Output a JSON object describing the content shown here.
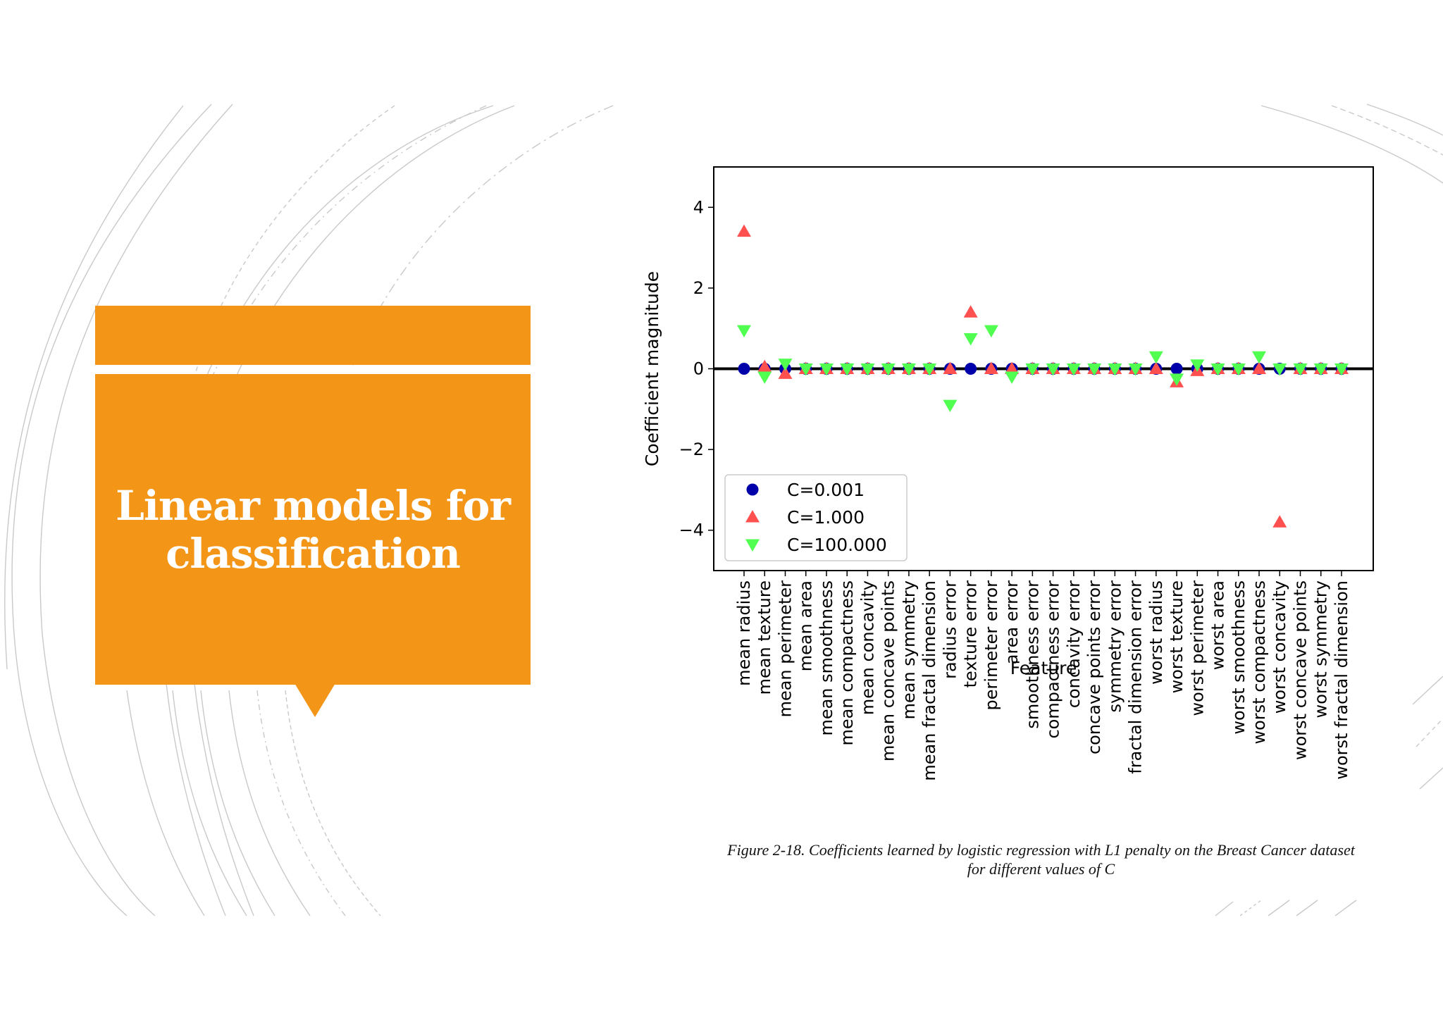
{
  "slide": {
    "title": "Linear models for classification",
    "accent_color": "#F39517"
  },
  "caption": {
    "line1": "Figure 2-18. Coefficients learned by logistic regression with L1 penalty on the Breast Cancer dataset",
    "line2": "for different values of C"
  },
  "chart_data": {
    "type": "scatter",
    "title": "",
    "xlabel": "Feature",
    "ylabel": "Coefficient magnitude",
    "ylim": [
      -5,
      5
    ],
    "yticks": [
      4,
      2,
      0,
      -2,
      -4
    ],
    "ytick_labels": [
      "4",
      "2",
      "0",
      "−2",
      "−4"
    ],
    "categories": [
      "mean radius",
      "mean texture",
      "mean perimeter",
      "mean area",
      "mean smoothness",
      "mean compactness",
      "mean concavity",
      "mean concave points",
      "mean symmetry",
      "mean fractal dimension",
      "radius error",
      "texture error",
      "perimeter error",
      "area error",
      "smoothness error",
      "compactness error",
      "concavity error",
      "concave points error",
      "symmetry error",
      "fractal dimension error",
      "worst radius",
      "worst texture",
      "worst perimeter",
      "worst area",
      "worst smoothness",
      "worst compactness",
      "worst concavity",
      "worst concave points",
      "worst symmetry",
      "worst fractal dimension"
    ],
    "legend_position": "lower-left",
    "series": [
      {
        "name": "C=0.001",
        "marker": "circle",
        "color": "#0000AA",
        "values": [
          0,
          0,
          0,
          0,
          0,
          0,
          0,
          0,
          0,
          0,
          0,
          0,
          0,
          0,
          0,
          0,
          0,
          0,
          0,
          0,
          0,
          0,
          0,
          0,
          0,
          0,
          0,
          0,
          0,
          0
        ]
      },
      {
        "name": "C=1.000",
        "marker": "triangle-up",
        "color": "#FF5050",
        "values": [
          3.4,
          0.05,
          -0.12,
          0,
          0,
          0,
          0,
          0,
          0,
          0,
          0,
          1.4,
          0,
          0,
          0,
          0,
          0,
          0,
          0,
          0,
          0,
          -0.33,
          -0.05,
          0,
          0,
          0,
          -3.8,
          0,
          0,
          0
        ]
      },
      {
        "name": "C=100.000",
        "marker": "triangle-down",
        "color": "#50FF50",
        "values": [
          0.95,
          -0.2,
          0.12,
          0,
          0,
          0,
          0,
          0,
          0,
          0,
          -0.9,
          0.75,
          0.95,
          -0.2,
          0,
          0,
          0,
          0,
          0,
          0,
          0.3,
          -0.25,
          0.1,
          0,
          0,
          0.3,
          0,
          0,
          0,
          0
        ]
      }
    ]
  }
}
